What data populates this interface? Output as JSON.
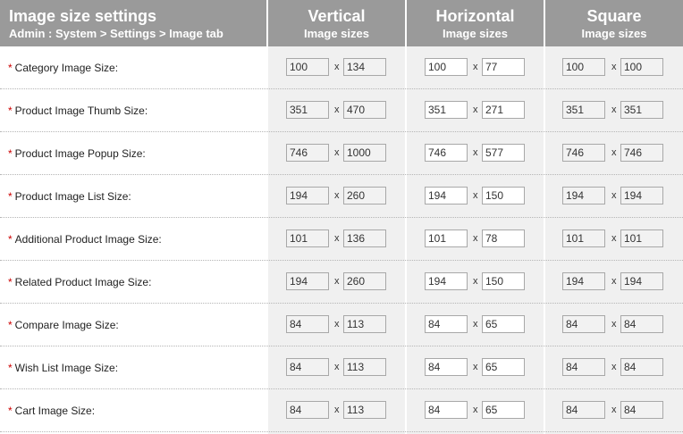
{
  "header": {
    "title": "Image size settings",
    "breadcrumb": "Admin : System > Settings > Image tab",
    "columns": [
      {
        "title": "Vertical",
        "subtitle": "Image sizes"
      },
      {
        "title": "Horizontal",
        "subtitle": "Image sizes"
      },
      {
        "title": "Square",
        "subtitle": "Image sizes"
      }
    ]
  },
  "separator": "x",
  "required_marker": "*",
  "rows": [
    {
      "label": "Category Image Size:",
      "vertical": [
        "100",
        "134"
      ],
      "horizontal": [
        "100",
        "77"
      ],
      "square": [
        "100",
        "100"
      ]
    },
    {
      "label": "Product Image Thumb Size:",
      "vertical": [
        "351",
        "470"
      ],
      "horizontal": [
        "351",
        "271"
      ],
      "square": [
        "351",
        "351"
      ]
    },
    {
      "label": "Product Image Popup Size:",
      "vertical": [
        "746",
        "1000"
      ],
      "horizontal": [
        "746",
        "577"
      ],
      "square": [
        "746",
        "746"
      ]
    },
    {
      "label": "Product Image List Size:",
      "vertical": [
        "194",
        "260"
      ],
      "horizontal": [
        "194",
        "150"
      ],
      "square": [
        "194",
        "194"
      ]
    },
    {
      "label": "Additional Product Image Size:",
      "vertical": [
        "101",
        "136"
      ],
      "horizontal": [
        "101",
        "78"
      ],
      "square": [
        "101",
        "101"
      ]
    },
    {
      "label": "Related Product Image Size:",
      "vertical": [
        "194",
        "260"
      ],
      "horizontal": [
        "194",
        "150"
      ],
      "square": [
        "194",
        "194"
      ]
    },
    {
      "label": "Compare Image Size:",
      "vertical": [
        "84",
        "113"
      ],
      "horizontal": [
        "84",
        "65"
      ],
      "square": [
        "84",
        "84"
      ]
    },
    {
      "label": "Wish List Image Size:",
      "vertical": [
        "84",
        "113"
      ],
      "horizontal": [
        "84",
        "65"
      ],
      "square": [
        "84",
        "84"
      ]
    },
    {
      "label": "Cart Image Size:",
      "vertical": [
        "84",
        "113"
      ],
      "horizontal": [
        "84",
        "65"
      ],
      "square": [
        "84",
        "84"
      ]
    }
  ]
}
